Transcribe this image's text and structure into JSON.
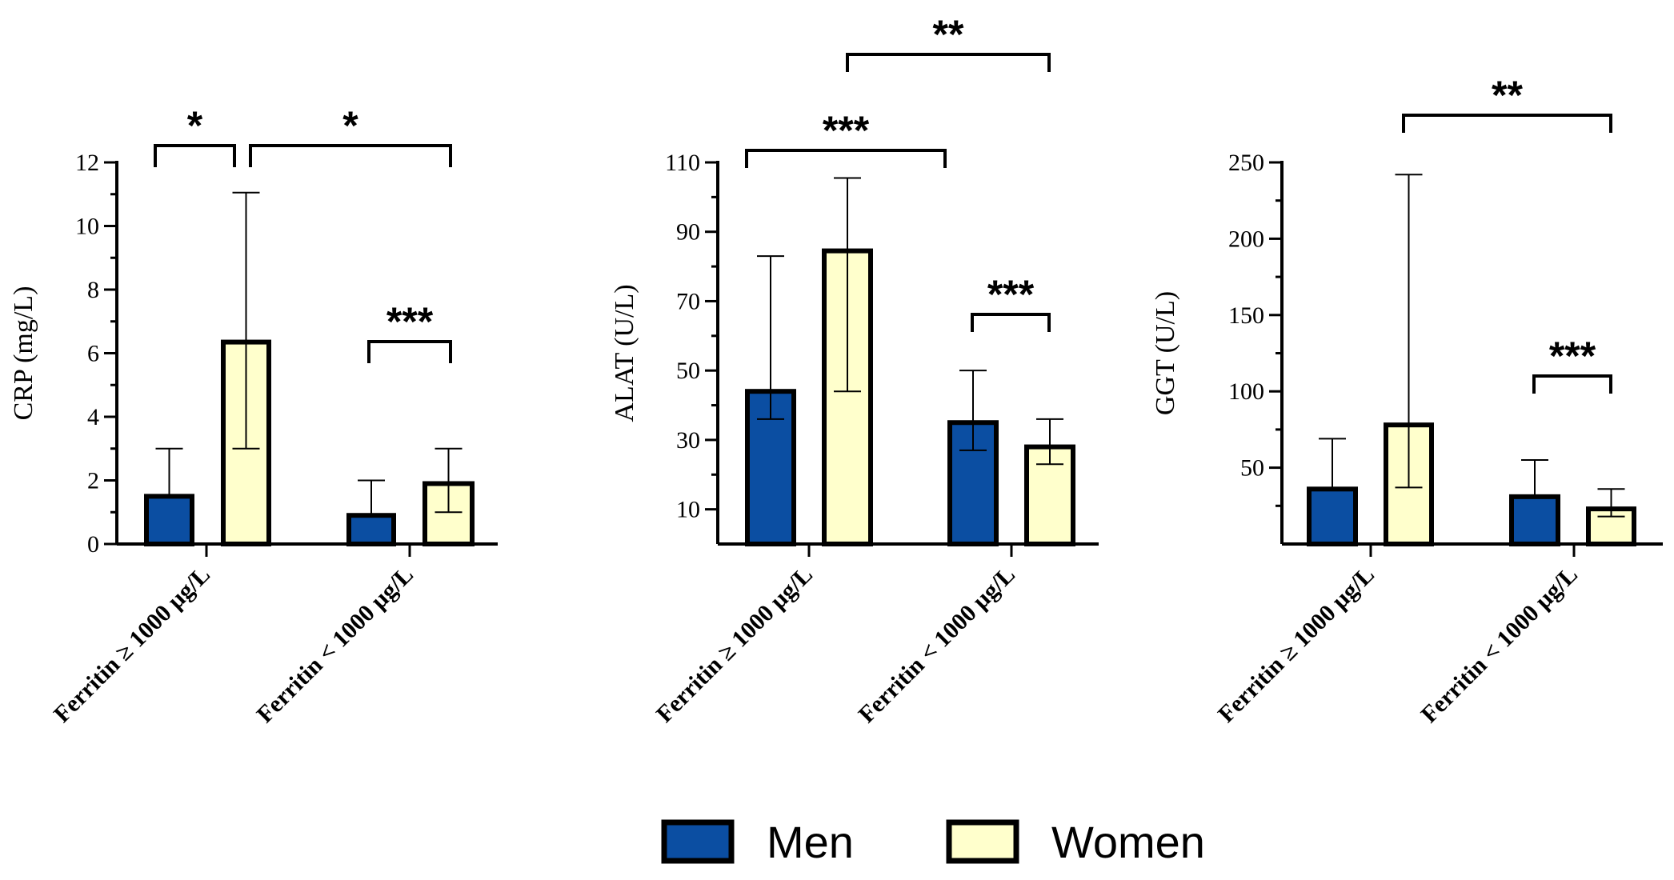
{
  "colors": {
    "men": "#0b4ea2",
    "women": "#ffffcc"
  },
  "legend": [
    {
      "label": "Men",
      "color": "#0b4ea2"
    },
    {
      "label": "Women",
      "color": "#ffffcc"
    }
  ],
  "chart_data": [
    {
      "type": "bar",
      "ylabel": "CRP (mg/L)",
      "ylim": [
        0,
        12
      ],
      "yticks": [
        0,
        2,
        4,
        6,
        8,
        10,
        12
      ],
      "categories": [
        "Ferritin ≥ 1000 µg/L",
        "Ferritin < 1000 µg/L"
      ],
      "series": [
        {
          "name": "Men",
          "values": [
            1.5,
            0.9
          ],
          "err_low": [
            1.5,
            0.9
          ],
          "err_high": [
            3.0,
            2.0
          ]
        },
        {
          "name": "Women",
          "values": [
            6.35,
            1.9
          ],
          "err_low": [
            3.0,
            1.0
          ],
          "err_high": [
            11.05,
            3.0
          ]
        }
      ],
      "annotations": [
        {
          "label": "*",
          "from": [
            0,
            0
          ],
          "to": [
            0,
            1
          ]
        },
        {
          "label": "***",
          "from": [
            1,
            0
          ],
          "to": [
            1,
            1
          ]
        },
        {
          "label": "*",
          "from": [
            0,
            1
          ],
          "to": [
            1,
            1
          ]
        }
      ]
    },
    {
      "type": "bar",
      "ylabel": "ALAT (U/L)",
      "ylim": [
        0,
        110
      ],
      "yticks": [
        10,
        30,
        50,
        70,
        90,
        110
      ],
      "categories": [
        "Ferritin ≥ 1000 µg/L",
        "Ferritin < 1000 µg/L"
      ],
      "series": [
        {
          "name": "Men",
          "values": [
            44,
            35
          ],
          "err_low": [
            36,
            27
          ],
          "err_high": [
            83,
            50
          ]
        },
        {
          "name": "Women",
          "values": [
            84.5,
            28
          ],
          "err_low": [
            44,
            23
          ],
          "err_high": [
            105.5,
            36
          ]
        }
      ],
      "annotations": [
        {
          "label": "***",
          "from": [
            0,
            0
          ],
          "to": [
            1,
            0
          ]
        },
        {
          "label": "***",
          "from": [
            1,
            0
          ],
          "to": [
            1,
            1
          ]
        },
        {
          "label": "**",
          "from": [
            0,
            1
          ],
          "to": [
            1,
            1
          ]
        }
      ]
    },
    {
      "type": "bar",
      "ylabel": "GGT (U/L)",
      "ylim": [
        0,
        250
      ],
      "yticks": [
        50,
        100,
        150,
        200,
        250
      ],
      "categories": [
        "Ferritin ≥ 1000 µg/L",
        "Ferritin < 1000 µg/L"
      ],
      "series": [
        {
          "name": "Men",
          "values": [
            36,
            31
          ],
          "err_low": [
            36,
            31
          ],
          "err_high": [
            69,
            55
          ]
        },
        {
          "name": "Women",
          "values": [
            78,
            23
          ],
          "err_low": [
            37,
            18
          ],
          "err_high": [
            242,
            36
          ]
        }
      ],
      "annotations": [
        {
          "label": "***",
          "from": [
            1,
            0
          ],
          "to": [
            1,
            1
          ]
        },
        {
          "label": "**",
          "from": [
            0,
            1
          ],
          "to": [
            1,
            1
          ]
        }
      ]
    }
  ]
}
